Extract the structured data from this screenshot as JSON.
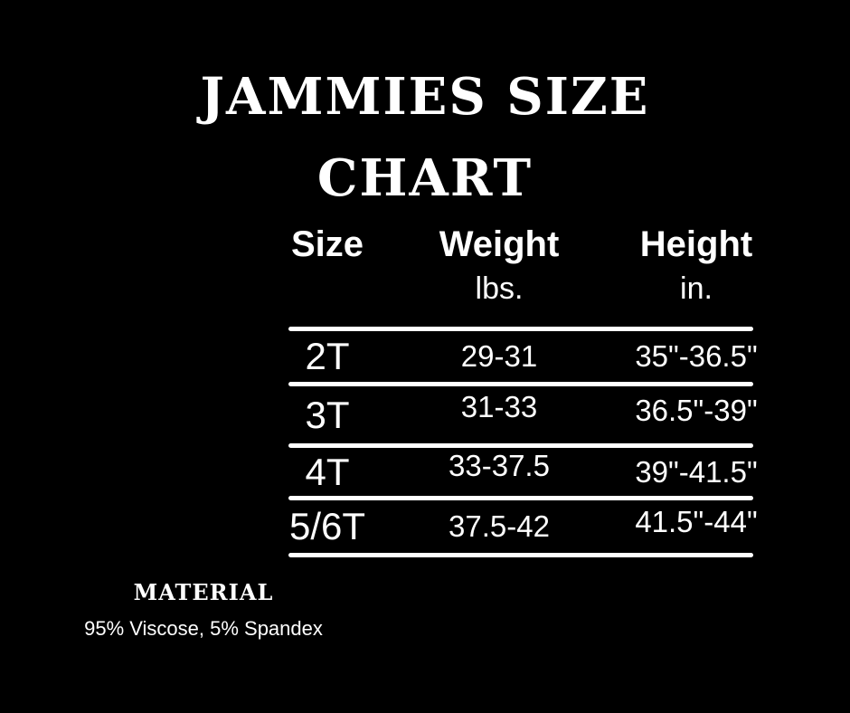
{
  "page": {
    "background_color": "#000000",
    "text_color": "#ffffff"
  },
  "title": {
    "text": "JAMMIES SIZE CHART",
    "lines": [
      "JAMMIES SIZE",
      "CHART"
    ]
  },
  "table": {
    "headers": [
      "Size",
      "Weight",
      "Height"
    ],
    "units": {
      "weight": "lbs.",
      "height": "in."
    }
  },
  "material": {
    "heading": "MATERIAL",
    "composition": "95% Viscose, 5% Spandex"
  },
  "chart_data": {
    "type": "table",
    "title": "JAMMIES SIZE CHART",
    "columns": [
      "Size",
      "Weight (lbs.)",
      "Height (in.)"
    ],
    "rows": [
      [
        "2T",
        "29-31",
        "35\"-36.5\""
      ],
      [
        "3T",
        "31-33",
        "36.5\"-39\""
      ],
      [
        "4T",
        "33-37.5",
        "39\"-41.5\""
      ],
      [
        "5/6T",
        "37.5-42",
        "41.5\"-44\""
      ]
    ],
    "footer": "MATERIAL: 95% Viscose, 5% Spandex"
  }
}
